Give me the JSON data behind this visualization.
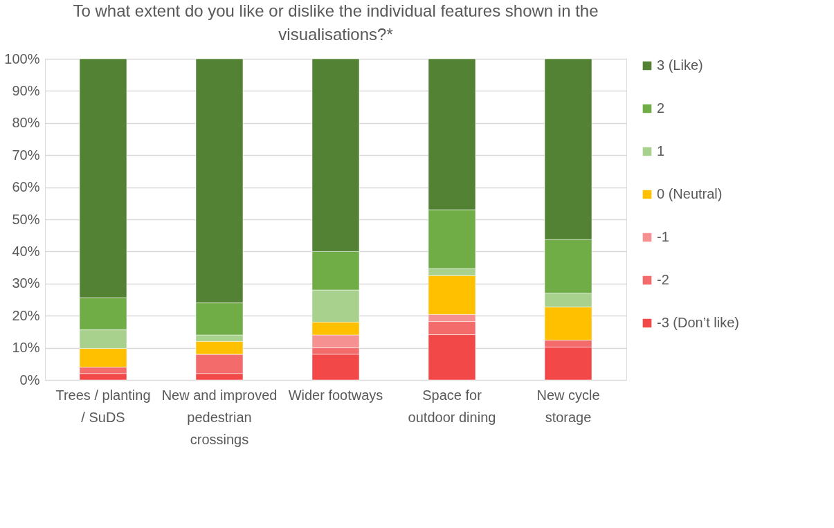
{
  "chart_data": {
    "type": "bar",
    "stacked": true,
    "title": "To what extent do you like or dislike the individual features shown in the visualisations?*",
    "categories": [
      "Trees / planting / SuDS",
      "New and improved pedestrian crossings",
      "Wider footways",
      "Space for outdoor dining",
      "New cycle storage"
    ],
    "series": [
      {
        "name": "-3 (Don’t like)",
        "color": "#f24848",
        "values": [
          2,
          2,
          8,
          14.1,
          10.2
        ]
      },
      {
        "name": "-2",
        "color": "#f36b6b",
        "values": [
          2,
          6,
          2,
          4.1,
          2.2
        ]
      },
      {
        "name": "-1",
        "color": "#f59291",
        "values": [
          0,
          0,
          4,
          2.2,
          0
        ]
      },
      {
        "name": "0 (Neutral)",
        "color": "#ffc000",
        "values": [
          5.8,
          4,
          4,
          12.1,
          10.3
        ]
      },
      {
        "name": "1",
        "color": "#a9d18e",
        "values": [
          5.8,
          2,
          10,
          2.2,
          4.3
        ]
      },
      {
        "name": "2",
        "color": "#70ad47",
        "values": [
          10,
          10,
          12,
          18.3,
          16.7
        ]
      },
      {
        "name": "3 (Like)",
        "color": "#548235",
        "values": [
          74.4,
          76,
          60,
          47,
          56.3
        ]
      }
    ],
    "ylim": [
      0,
      100
    ],
    "yticks": [
      {
        "value": 0,
        "label": "0%"
      },
      {
        "value": 10,
        "label": "10%"
      },
      {
        "value": 20,
        "label": "20%"
      },
      {
        "value": 30,
        "label": "30%"
      },
      {
        "value": 40,
        "label": "40%"
      },
      {
        "value": 50,
        "label": "50%"
      },
      {
        "value": 60,
        "label": "60%"
      },
      {
        "value": 70,
        "label": "70%"
      },
      {
        "value": 80,
        "label": "80%"
      },
      {
        "value": 90,
        "label": "90%"
      },
      {
        "value": 100,
        "label": "100%"
      }
    ],
    "grid": "y",
    "legend": "right"
  }
}
